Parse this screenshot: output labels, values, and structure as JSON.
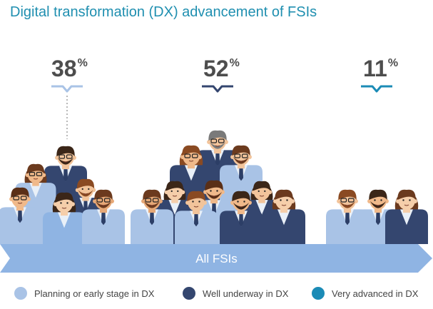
{
  "title": "Digital transformation (DX) advancement of FSIs",
  "chart_data": {
    "type": "bar",
    "title": "Digital transformation (DX) advancement of FSIs",
    "categories": [
      "Planning or early stage in DX",
      "Well underway in DX",
      "Very advanced in DX"
    ],
    "values": [
      38,
      52,
      11
    ],
    "unit": "%",
    "base_label": "All FSIs",
    "colors": [
      "#a9c3e6",
      "#34466f",
      "#1b8bb6"
    ]
  },
  "percent_sign": "%",
  "arrow_label": "All FSIs",
  "legend": [
    {
      "label": "Planning or early stage in DX",
      "color": "#a9c3e6"
    },
    {
      "label": "Well underway in DX",
      "color": "#34466f"
    },
    {
      "label": "Very advanced in DX",
      "color": "#1b8bb6"
    }
  ]
}
